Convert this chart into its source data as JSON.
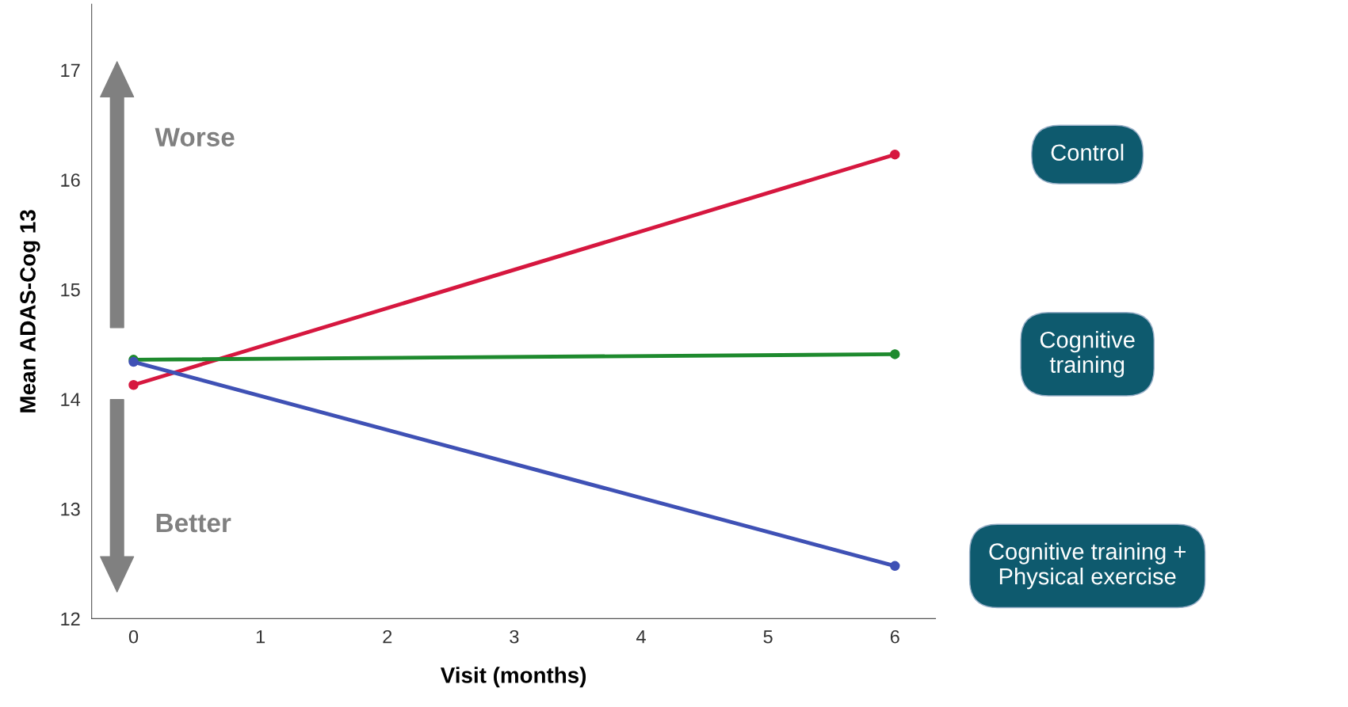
{
  "chart_data": {
    "type": "line",
    "xlabel": "Visit (months)",
    "ylabel": "Mean ADAS-Cog 13",
    "x": [
      0,
      6
    ],
    "xlim": [
      -0.33,
      6.32
    ],
    "xticks": [
      0,
      1,
      2,
      3,
      4,
      5,
      6
    ],
    "ylim": [
      12,
      17.6
    ],
    "yticks": [
      12,
      13,
      14,
      15,
      16,
      17
    ],
    "marker": "circle",
    "line_style": "solid",
    "grid": false,
    "legend": false,
    "series": [
      {
        "name": "Control",
        "color": "#d6173f",
        "values": [
          14.13,
          16.23
        ]
      },
      {
        "name": "Cognitive\ntraining",
        "color": "#1e8a2e",
        "values": [
          14.36,
          14.41
        ]
      },
      {
        "name": "Cognitive training +\nPhysical exercise",
        "color": "#3f51b5",
        "values": [
          14.34,
          12.48
        ]
      }
    ],
    "annotations": [
      "Worse",
      "Better"
    ]
  }
}
